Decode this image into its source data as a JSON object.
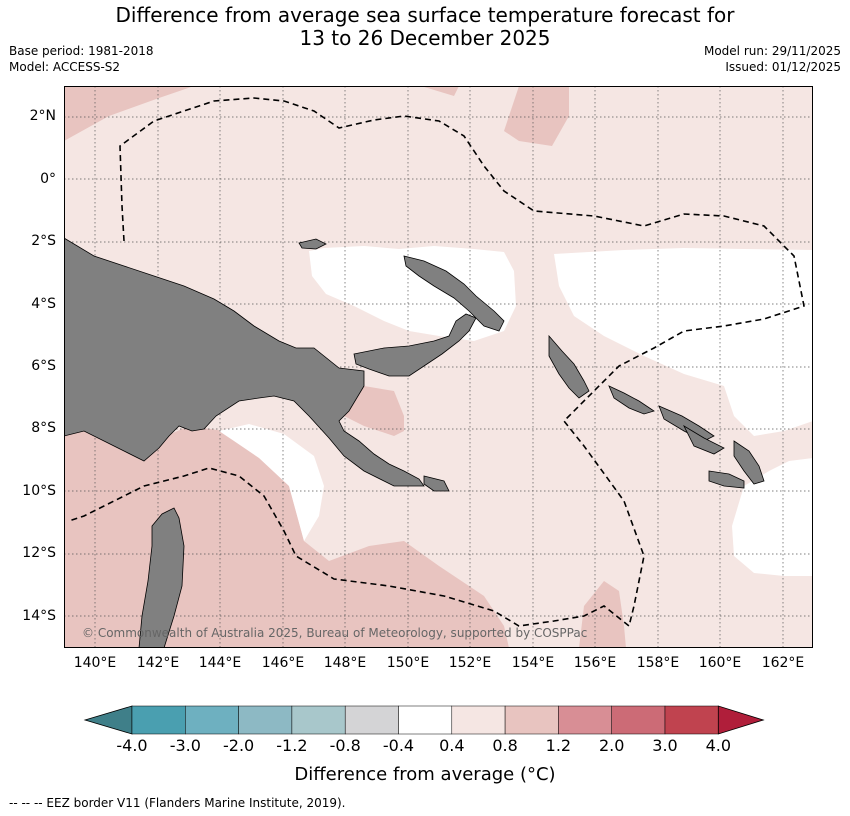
{
  "title": {
    "line1": "Difference from average sea surface temperature forecast for",
    "line2": "13 to 26 December 2025"
  },
  "meta": {
    "base_period": "Base period: 1981-2018",
    "model": "Model: ACCESS-S2",
    "model_run": "Model run: 29/11/2025",
    "issued": "Issued: 01/12/2025"
  },
  "map": {
    "lat_labels": [
      "2°N",
      "0°",
      "2°S",
      "4°S",
      "6°S",
      "8°S",
      "10°S",
      "12°S",
      "14°S"
    ],
    "lon_labels": [
      "140°E",
      "142°E",
      "144°E",
      "146°E",
      "148°E",
      "150°E",
      "152°E",
      "154°E",
      "156°E",
      "158°E",
      "160°E",
      "162°E"
    ],
    "copyright": "© Commonwealth of Australia 2025, Bureau of Meteorology, supported by COSPPac"
  },
  "colorbar": {
    "colors": [
      "#4a9fb0",
      "#6eb0c0",
      "#8db9c4",
      "#a8c7cb",
      "#d4d4d6",
      "#ffffff",
      "#f5e6e3",
      "#e8c4c0",
      "#d88e95",
      "#cc6b76",
      "#c0434f"
    ],
    "below_color": "#3f7f89",
    "above_color": "#b01e3a",
    "labels": [
      "-4.0",
      "-3.0",
      "-2.0",
      "-1.2",
      "-0.8",
      "-0.4",
      "0.4",
      "0.8",
      "1.2",
      "2.0",
      "3.0",
      "4.0"
    ],
    "title": "Difference from average (°C)"
  },
  "legend": {
    "eez_note": "--  --  -- EEZ border V11 (Flanders Marine Institute, 2019)."
  }
}
